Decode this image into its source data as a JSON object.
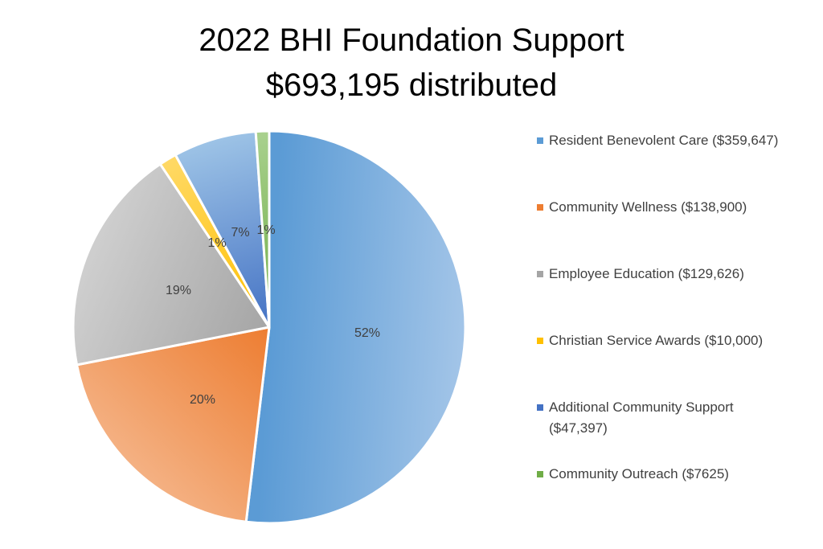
{
  "chart_data": {
    "type": "pie",
    "title": "2022 BHI Foundation Support",
    "subtitle": "$693,195 distributed",
    "slices": [
      {
        "name": "Resident Benevolent Care ($359,647)",
        "value": 359647,
        "label": "52%",
        "color_light": "#a3c5e8",
        "color_dark": "#5b9bd5"
      },
      {
        "name": "Community Wellness ($138,900)",
        "value": 138900,
        "label": "20%",
        "color_light": "#f4b183",
        "color_dark": "#ed7d31"
      },
      {
        "name": "Employee Education ($129,626)",
        "value": 129626,
        "label": "19%",
        "color_light": "#cfcfcf",
        "color_dark": "#a5a5a5"
      },
      {
        "name": "Christian Service Awards ($10,000)",
        "value": 10000,
        "label": "1%",
        "color_light": "#ffd966",
        "color_dark": "#ffc000"
      },
      {
        "name": "Additional Community Support ($47,397)",
        "value": 47397,
        "label": "7%",
        "color_light": "#9dc3e6",
        "color_dark": "#4472c4"
      },
      {
        "name": "Community Outreach ($7625)",
        "value": 7625,
        "label": "1%",
        "color_light": "#a9d18e",
        "color_dark": "#70ad47"
      }
    ],
    "legend_position": "right"
  },
  "legend": {
    "items": [
      {
        "text": "Resident Benevolent Care ($359,647)",
        "color": "#5b9bd5"
      },
      {
        "text": "Community Wellness ($138,900)",
        "color": "#ed7d31"
      },
      {
        "text": "Employee Education ($129,626)",
        "color": "#a5a5a5"
      },
      {
        "text": "Christian Service Awards ($10,000)",
        "color": "#ffc000"
      },
      {
        "text": "Additional Community Support ($47,397)",
        "color": "#4472c4"
      },
      {
        "text": "Community Outreach ($7625)",
        "color": "#70ad47"
      }
    ]
  }
}
